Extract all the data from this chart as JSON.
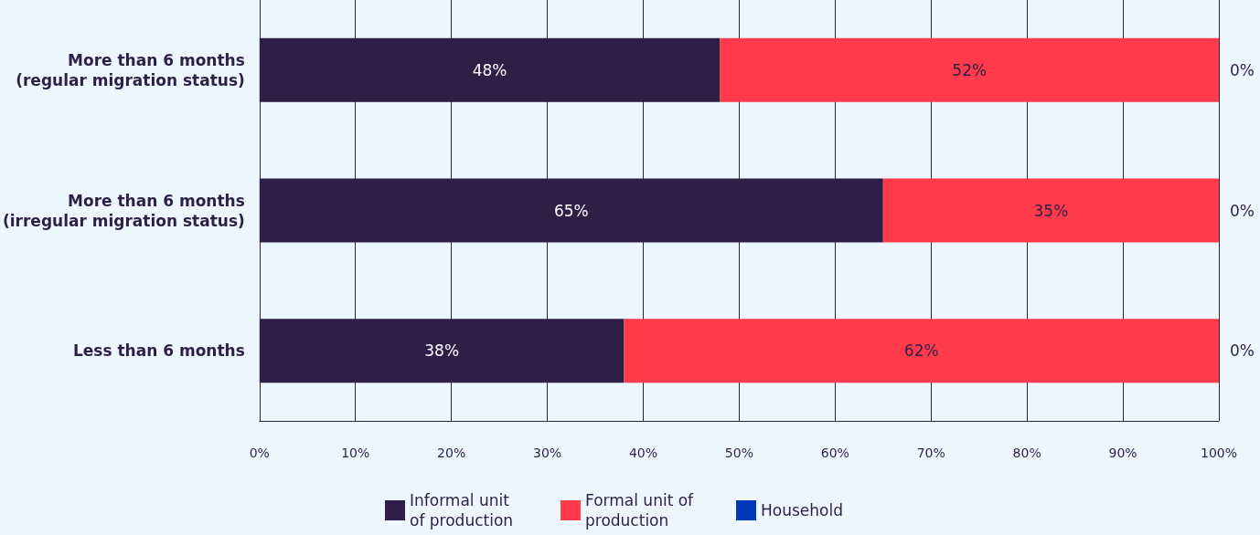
{
  "chart_data": {
    "type": "bar",
    "orientation": "horizontal",
    "stacked": true,
    "categories": [
      "More than 6 months\n(regular migration status)",
      "More than 6 months\n(irregular migration status)",
      "Less than 6 months"
    ],
    "series": [
      {
        "name": "Informal unit of production",
        "color": "#2e1f47",
        "values": [
          48,
          65,
          38
        ],
        "value_labels": [
          "48%",
          "65%",
          "38%"
        ]
      },
      {
        "name": "Formal unit of production",
        "color": "#ff3a4a",
        "values": [
          52,
          35,
          62
        ],
        "value_labels": [
          "52%",
          "35%",
          "62%"
        ]
      },
      {
        "name": "Household",
        "color": "#0039b8",
        "values": [
          0,
          0,
          0
        ],
        "value_labels": [
          "0%",
          "0%",
          "0%"
        ]
      }
    ],
    "xlim": [
      0,
      100
    ],
    "xticks": [
      {
        "value": 0,
        "label": "0%"
      },
      {
        "value": 10,
        "label": "10%"
      },
      {
        "value": 20,
        "label": "20%"
      },
      {
        "value": 30,
        "label": "30%"
      },
      {
        "value": 40,
        "label": "40%"
      },
      {
        "value": 50,
        "label": "50%"
      },
      {
        "value": 60,
        "label": "60%"
      },
      {
        "value": 70,
        "label": "70%"
      },
      {
        "value": 80,
        "label": "80%"
      },
      {
        "value": 90,
        "label": "90%"
      },
      {
        "value": 100,
        "label": "100%"
      }
    ],
    "grid": "x",
    "legend": "bottom"
  }
}
